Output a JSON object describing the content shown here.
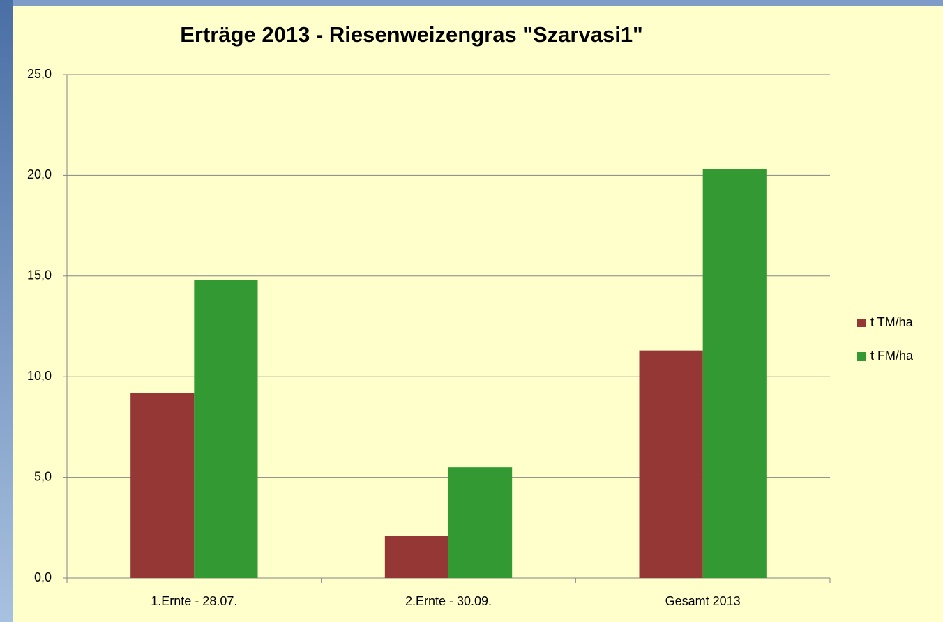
{
  "chart_data": {
    "type": "bar",
    "title": "Erträge 2013 - Riesenweizengras \"Szarvasi1\"",
    "categories": [
      "1.Ernte - 28.07.",
      "2.Ernte - 30.09.",
      "Gesamt 2013"
    ],
    "series": [
      {
        "name": "t TM/ha",
        "color": "#953735",
        "values": [
          9.2,
          2.1,
          11.3
        ]
      },
      {
        "name": "t FM/ha",
        "color": "#339933",
        "values": [
          14.8,
          5.5,
          20.3
        ]
      }
    ],
    "ylim": [
      0,
      25
    ],
    "yticks": [
      {
        "value": 0,
        "label": "0,0"
      },
      {
        "value": 5,
        "label": "5,0"
      },
      {
        "value": 10,
        "label": "10,0"
      },
      {
        "value": 15,
        "label": "15,0"
      },
      {
        "value": 20,
        "label": "20,0"
      },
      {
        "value": 25,
        "label": "25,0"
      }
    ],
    "grid": true,
    "legend": "right"
  }
}
